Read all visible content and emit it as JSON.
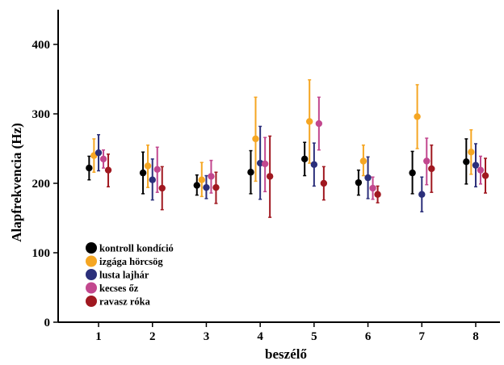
{
  "chart_data": {
    "type": "errorbar",
    "xlabel": "beszélő",
    "ylabel": "Alapfrekvencia (Hz)",
    "ylim": [
      0,
      450
    ],
    "yticks": [
      0,
      100,
      200,
      300,
      400
    ],
    "categories": [
      "1",
      "2",
      "3",
      "4",
      "5",
      "6",
      "7",
      "8"
    ],
    "legend_position": "bottom-left",
    "grid": false,
    "series": [
      {
        "name": "kontroll kondíció",
        "color": "#000000",
        "values": [
          222,
          215,
          197,
          216,
          235,
          201,
          215,
          231
        ],
        "lower": [
          205,
          185,
          183,
          185,
          211,
          183,
          185,
          199
        ],
        "upper": [
          239,
          245,
          212,
          247,
          259,
          219,
          246,
          264
        ]
      },
      {
        "name": "izgága hörcsög",
        "color": "#f5a623",
        "values": [
          240,
          225,
          205,
          264,
          289,
          232,
          296,
          245
        ],
        "lower": [
          216,
          194,
          181,
          203,
          229,
          211,
          250,
          213
        ],
        "upper": [
          264,
          255,
          230,
          324,
          349,
          255,
          342,
          277
        ]
      },
      {
        "name": "lusta lajhár",
        "color": "#2b2f7a",
        "values": [
          244,
          205,
          194,
          229,
          227,
          208,
          184,
          226
        ],
        "lower": [
          218,
          176,
          178,
          177,
          196,
          178,
          159,
          195
        ],
        "upper": [
          270,
          235,
          211,
          282,
          258,
          238,
          209,
          257
        ]
      },
      {
        "name": "kecses őz",
        "color": "#c2478e",
        "values": [
          235,
          220,
          210,
          228,
          286,
          193,
          232,
          219
        ],
        "lower": [
          222,
          187,
          186,
          188,
          248,
          177,
          198,
          199
        ],
        "upper": [
          248,
          252,
          233,
          266,
          324,
          209,
          265,
          239
        ]
      },
      {
        "name": "ravasz róka",
        "color": "#a01820",
        "values": [
          219,
          193,
          194,
          210,
          200,
          184,
          221,
          211
        ],
        "lower": [
          195,
          162,
          171,
          151,
          176,
          172,
          187,
          186
        ],
        "upper": [
          242,
          224,
          216,
          268,
          224,
          196,
          255,
          236
        ]
      }
    ]
  }
}
